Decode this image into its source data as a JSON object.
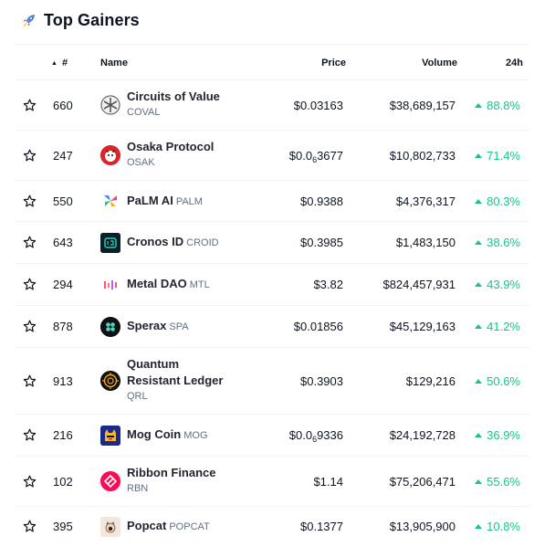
{
  "header": {
    "title": "Top Gainers",
    "icon": "rocket-icon"
  },
  "columns": {
    "rank": "#",
    "name": "Name",
    "price": "Price",
    "volume": "Volume",
    "change": "24h"
  },
  "colors": {
    "positive": "#16c784",
    "text": "#0d1421",
    "muted": "#616e85",
    "divider": "#eff2f5"
  },
  "rows": [
    {
      "rank": "660",
      "name": "Circuits of Value",
      "symbol": "COVAL",
      "price": "$0.03163",
      "volume": "$38,689,157",
      "change": "88.8%",
      "icon": "circuits-of-value-logo"
    },
    {
      "rank": "247",
      "name": "Osaka Protocol",
      "symbol": "OSAK",
      "price_prefix": "$0.0",
      "price_sub": "6",
      "price_suffix": "3677",
      "volume": "$10,802,733",
      "change": "71.4%",
      "icon": "osaka-protocol-logo"
    },
    {
      "rank": "550",
      "name": "PaLM AI",
      "symbol": "PALM",
      "price": "$0.9388",
      "volume": "$4,376,317",
      "change": "80.3%",
      "icon": "palm-ai-logo"
    },
    {
      "rank": "643",
      "name": "Cronos ID",
      "symbol": "CROID",
      "price": "$0.3985",
      "volume": "$1,483,150",
      "change": "38.6%",
      "icon": "cronos-id-logo"
    },
    {
      "rank": "294",
      "name": "Metal DAO",
      "symbol": "MTL",
      "price": "$3.82",
      "volume": "$824,457,931",
      "change": "43.9%",
      "icon": "metal-dao-logo"
    },
    {
      "rank": "878",
      "name": "Sperax",
      "symbol": "SPA",
      "price": "$0.01856",
      "volume": "$45,129,163",
      "change": "41.2%",
      "icon": "sperax-logo"
    },
    {
      "rank": "913",
      "name_line1": "Quantum",
      "name_line2": "Resistant Ledger",
      "symbol": "QRL",
      "price": "$0.3903",
      "volume": "$129,216",
      "change": "50.6%",
      "icon": "quantum-resistant-ledger-logo"
    },
    {
      "rank": "216",
      "name": "Mog Coin",
      "symbol": "MOG",
      "price_prefix": "$0.0",
      "price_sub": "6",
      "price_suffix": "9336",
      "volume": "$24,192,728",
      "change": "36.9%",
      "icon": "mog-coin-logo"
    },
    {
      "rank": "102",
      "name": "Ribbon Finance",
      "symbol": "RBN",
      "price": "$1.14",
      "volume": "$75,206,471",
      "change": "55.6%",
      "icon": "ribbon-finance-logo"
    },
    {
      "rank": "395",
      "name": "Popcat",
      "symbol": "POPCAT",
      "price": "$0.1377",
      "volume": "$13,905,900",
      "change": "10.8%",
      "icon": "popcat-logo"
    }
  ]
}
